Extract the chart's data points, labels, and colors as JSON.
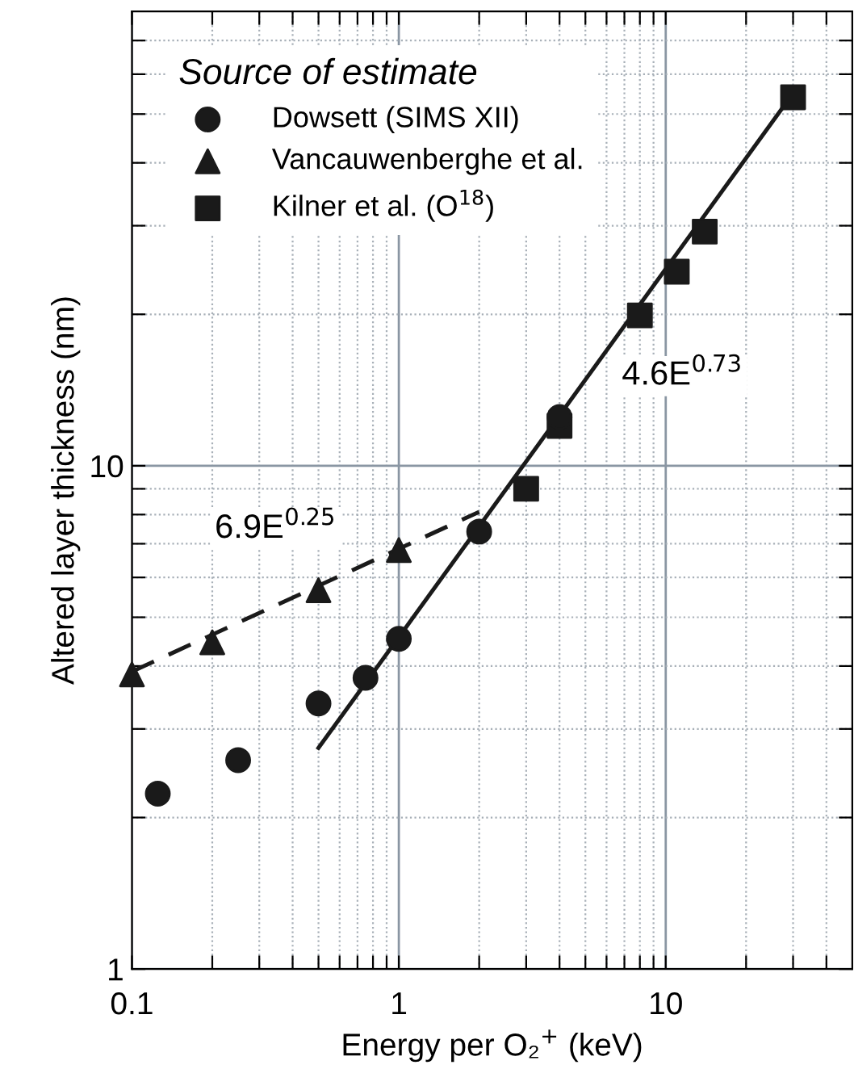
{
  "chart_data": {
    "type": "scatter",
    "xlabel": "Energy per O₂$^{+}$ (keV)",
    "ylabel": "Altered layer thickness (nm)",
    "legend_title": "Source of estimate",
    "log": "xy",
    "grid": true,
    "legend": "top left",
    "xlim": [
      0.1,
      50
    ],
    "ylim": [
      1,
      80
    ],
    "xticks": [
      {
        "value": 0.1,
        "label": "0.1"
      },
      {
        "value": 0.2,
        "label": null
      },
      {
        "value": 0.3,
        "label": null
      },
      {
        "value": 0.4,
        "label": null
      },
      {
        "value": 0.5,
        "label": null
      },
      {
        "value": 0.6,
        "label": null
      },
      {
        "value": 0.7,
        "label": null
      },
      {
        "value": 0.8,
        "label": null
      },
      {
        "value": 0.9,
        "label": null
      },
      1,
      {
        "value": 2,
        "label": null
      },
      {
        "value": 3,
        "label": null
      },
      {
        "value": 4,
        "label": null
      },
      {
        "value": 5,
        "label": null
      },
      {
        "value": 6,
        "label": null
      },
      {
        "value": 7,
        "label": null
      },
      {
        "value": 8,
        "label": null
      },
      {
        "value": 9,
        "label": null
      },
      10,
      {
        "value": 20,
        "label": null
      },
      {
        "value": 30,
        "label": null
      },
      {
        "value": 40,
        "label": null
      }
    ],
    "yticks": [
      1,
      {
        "value": 2,
        "label": null
      },
      {
        "value": 3,
        "label": null
      },
      {
        "value": 4,
        "label": null
      },
      {
        "value": 5,
        "label": null
      },
      {
        "value": 6,
        "label": null
      },
      {
        "value": 7,
        "label": null
      },
      {
        "value": 8,
        "label": null
      },
      {
        "value": 9,
        "label": null
      },
      10,
      {
        "value": 20,
        "label": null
      },
      {
        "value": 30,
        "label": null
      },
      {
        "value": 40,
        "label": null
      },
      {
        "value": 50,
        "label": null
      },
      {
        "value": 60,
        "label": null
      },
      {
        "value": 70,
        "label": null
      }
    ],
    "series": [
      {
        "name": "Dowsett (SIMS XII)",
        "color": "#1a1a1a",
        "marker": "circle",
        "x": [
          0.125,
          0.25,
          0.5,
          0.75,
          1,
          2,
          4
        ],
        "values": [
          2.23,
          2.6,
          3.37,
          3.79,
          4.53,
          7.4,
          12.5
        ]
      },
      {
        "name": "Vancauwenberghe et al.",
        "color": "#1a1a1a",
        "marker": "triangle",
        "x": [
          0.1,
          0.2,
          0.5,
          1
        ],
        "values": [
          3.85,
          4.46,
          5.66,
          6.8
        ]
      },
      {
        "name": "Kilner et al. (O$^{18}$)",
        "color": "#1a1a1a",
        "marker": "square",
        "x": [
          3,
          4,
          8,
          11,
          14,
          30
        ],
        "values": [
          9.0,
          12.0,
          19.9,
          24.3,
          29.2,
          54
        ]
      },
      {
        "type": "line",
        "color": "#1a1a1a",
        "line_style": "solid",
        "x": [
          0.5,
          30
        ],
        "values": [
          2.75,
          55
        ]
      },
      {
        "type": "line",
        "color": "#1a1a1a",
        "line_style": "dashed",
        "x": [
          0.1,
          2
        ],
        "values": [
          3.9,
          8.1
        ]
      }
    ],
    "annotations": [
      "6.9E$^{0.25}$",
      "4.6E$^{0.73}$"
    ]
  }
}
